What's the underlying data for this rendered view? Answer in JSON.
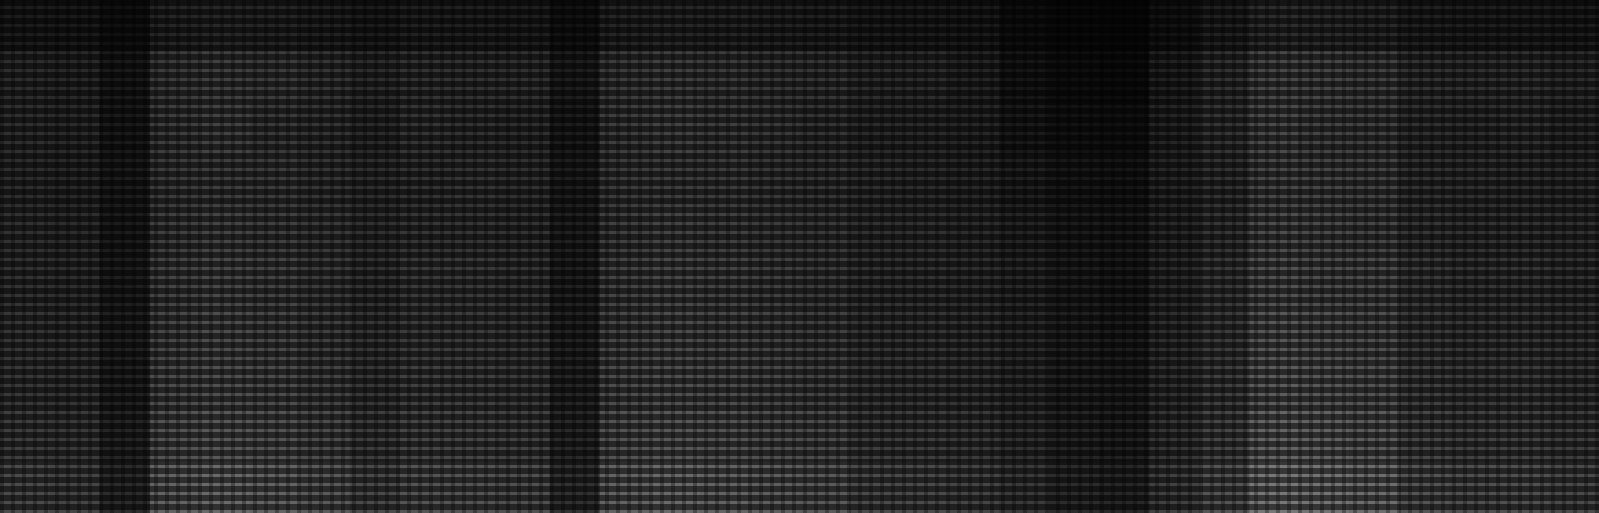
{
  "chart_data": {
    "type": "heatmap",
    "tick_labels": false,
    "color": "#ffffff",
    "color_range": [
      0,
      100
    ],
    "cells": [
      [
        15,
        14,
        9,
        20,
        21,
        20,
        18,
        15,
        17,
        17,
        16,
        10,
        20,
        21,
        20,
        19,
        18,
        15,
        15,
        14,
        8,
        5,
        4,
        10,
        17,
        24,
        23,
        22,
        17,
        16,
        16,
        15
      ],
      [
        24,
        22,
        14,
        32,
        34,
        32,
        29,
        24,
        27,
        27,
        26,
        16,
        32,
        34,
        32,
        30,
        29,
        24,
        24,
        20,
        12,
        8,
        7,
        18,
        27,
        38,
        37,
        35,
        27,
        26,
        26,
        24
      ],
      [
        25,
        23,
        14,
        33,
        35,
        31,
        28,
        23,
        28,
        27,
        25,
        15,
        33,
        35,
        33,
        31,
        28,
        23,
        23,
        21,
        14,
        10,
        9,
        20,
        28,
        39,
        36,
        35,
        26,
        25,
        26,
        23
      ],
      [
        24,
        22,
        15,
        32,
        33,
        32,
        29,
        25,
        27,
        28,
        26,
        16,
        32,
        33,
        32,
        30,
        29,
        25,
        24,
        22,
        17,
        13,
        12,
        21,
        27,
        38,
        37,
        36,
        27,
        26,
        25,
        24
      ],
      [
        26,
        24,
        15,
        34,
        36,
        34,
        31,
        26,
        29,
        29,
        27,
        17,
        34,
        36,
        34,
        32,
        31,
        26,
        26,
        24,
        20,
        15,
        14,
        22,
        29,
        41,
        39,
        37,
        29,
        27,
        27,
        26
      ],
      [
        27,
        25,
        16,
        36,
        38,
        36,
        32,
        27,
        31,
        31,
        29,
        18,
        36,
        38,
        36,
        34,
        32,
        27,
        27,
        25,
        22,
        16,
        14,
        23,
        31,
        43,
        41,
        40,
        31,
        29,
        29,
        27
      ],
      [
        29,
        27,
        17,
        38,
        40,
        38,
        34,
        29,
        32,
        32,
        30,
        19,
        38,
        40,
        38,
        36,
        34,
        29,
        29,
        27,
        23,
        17,
        15,
        25,
        32,
        46,
        44,
        42,
        32,
        30,
        30,
        29
      ],
      [
        30,
        28,
        18,
        40,
        42,
        40,
        36,
        30,
        34,
        34,
        32,
        20,
        40,
        42,
        40,
        38,
        36,
        30,
        30,
        28,
        24,
        18,
        16,
        26,
        34,
        48,
        46,
        44,
        34,
        32,
        32,
        30
      ],
      [
        33,
        31,
        20,
        44,
        46,
        44,
        40,
        33,
        37,
        37,
        35,
        22,
        44,
        46,
        44,
        42,
        40,
        33,
        33,
        31,
        26,
        20,
        18,
        29,
        37,
        53,
        51,
        48,
        37,
        35,
        35,
        33
      ],
      [
        39,
        36,
        23,
        52,
        55,
        52,
        47,
        39,
        44,
        44,
        42,
        26,
        52,
        55,
        52,
        49,
        47,
        39,
        39,
        36,
        31,
        23,
        21,
        34,
        44,
        62,
        60,
        57,
        44,
        42,
        42,
        39
      ]
    ]
  }
}
